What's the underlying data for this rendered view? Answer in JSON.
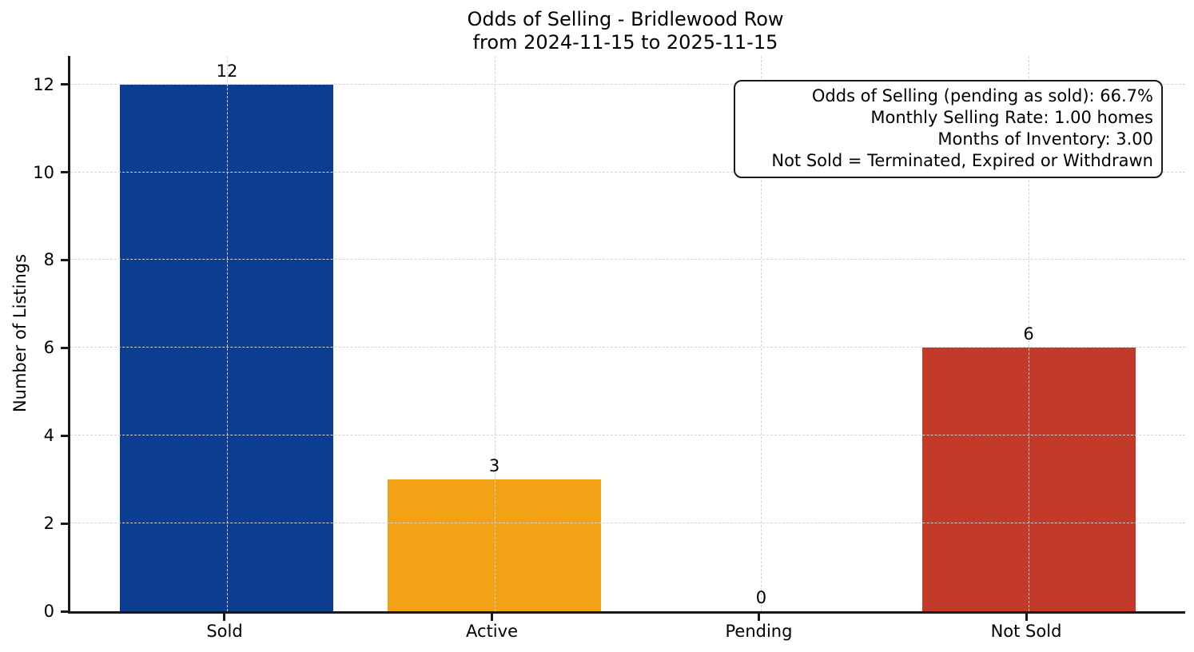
{
  "chart_data": {
    "type": "bar",
    "title": "Odds of Selling - Bridlewood Row",
    "subtitle": "from 2024-11-15 to 2025-11-15",
    "categories": [
      "Sold",
      "Active",
      "Pending",
      "Not Sold"
    ],
    "values": [
      12,
      3,
      0,
      6
    ],
    "bar_labels": [
      "12",
      "3",
      "0",
      "6"
    ],
    "bar_colors": [
      "#0d3d91",
      "#f2a214",
      null,
      "#c23a2a"
    ],
    "xlabel": "",
    "ylabel": "Number of Listings",
    "yticks": [
      0,
      2,
      4,
      6,
      8,
      10,
      12
    ],
    "ylim": [
      0,
      12.65
    ],
    "grid": "dashed both axes, drawn over bars",
    "legend_position": "none",
    "annotation": {
      "lines": [
        "Odds of Selling (pending as sold): 66.7%",
        "Monthly Selling Rate: 1.00 homes",
        "Months of Inventory: 3.00",
        "Not Sold = Terminated, Expired or Withdrawn"
      ]
    },
    "colors": {
      "spine": "#1a1a1a",
      "grid": "#d4d4d4",
      "text": "#000000",
      "background": "#ffffff"
    }
  }
}
